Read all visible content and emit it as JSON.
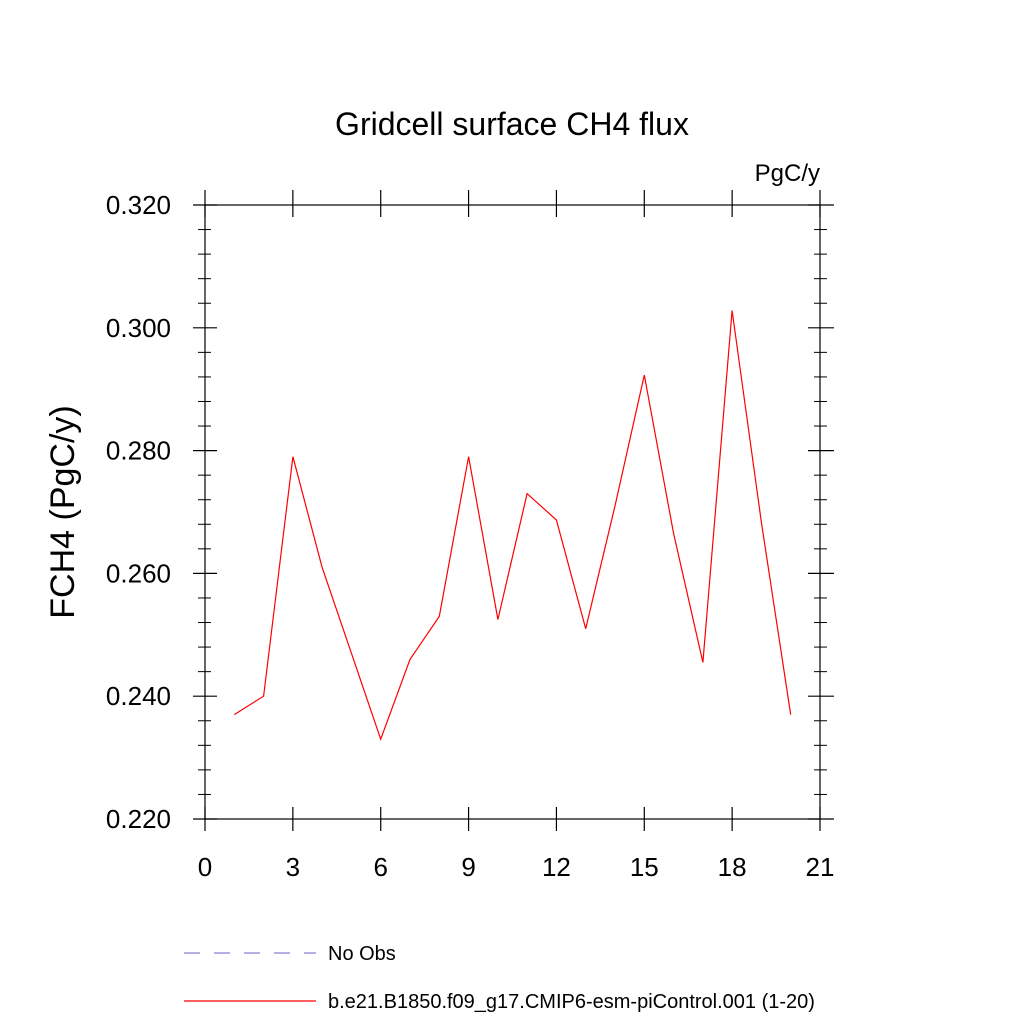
{
  "chart_data": {
    "type": "line",
    "title": "Gridcell surface CH4 flux",
    "units_label": "PgC/y",
    "ylabel": "FCH4  (PgC/y)",
    "xlabel": "",
    "xlim": [
      0,
      21
    ],
    "ylim": [
      0.22,
      0.32
    ],
    "x_ticks": [
      0,
      3,
      6,
      9,
      12,
      15,
      18,
      21
    ],
    "x_tick_labels": [
      "0",
      "3",
      "6",
      "9",
      "12",
      "15",
      "18",
      "21"
    ],
    "y_ticks": [
      0.22,
      0.24,
      0.26,
      0.28,
      0.3,
      0.32
    ],
    "y_tick_labels": [
      "0.220",
      "0.240",
      "0.260",
      "0.280",
      "0.300",
      "0.320"
    ],
    "grid": false,
    "legend_position": "bottom",
    "series": [
      {
        "name": "b.e21.B1850.f09_g17.CMIP6-esm-piControl.001 (1-20)",
        "color": "#ff0000",
        "style": "solid",
        "x": [
          1,
          2,
          3,
          4,
          5,
          6,
          7,
          8,
          9,
          10,
          11,
          12,
          13,
          14,
          15,
          16,
          17,
          18,
          19,
          20
        ],
        "values": [
          0.237,
          0.24,
          0.279,
          0.261,
          0.247,
          0.233,
          0.246,
          0.253,
          0.279,
          0.2525,
          0.273,
          0.2687,
          0.251,
          0.271,
          0.2923,
          0.2665,
          0.2455,
          0.3028,
          0.2683,
          0.237
        ]
      }
    ],
    "legend": [
      {
        "label": "No Obs",
        "color": "#8a7fd0",
        "style": "dashed"
      },
      {
        "label": "b.e21.B1850.f09_g17.CMIP6-esm-piControl.001 (1-20)",
        "color": "#ff0000",
        "style": "solid"
      }
    ]
  }
}
